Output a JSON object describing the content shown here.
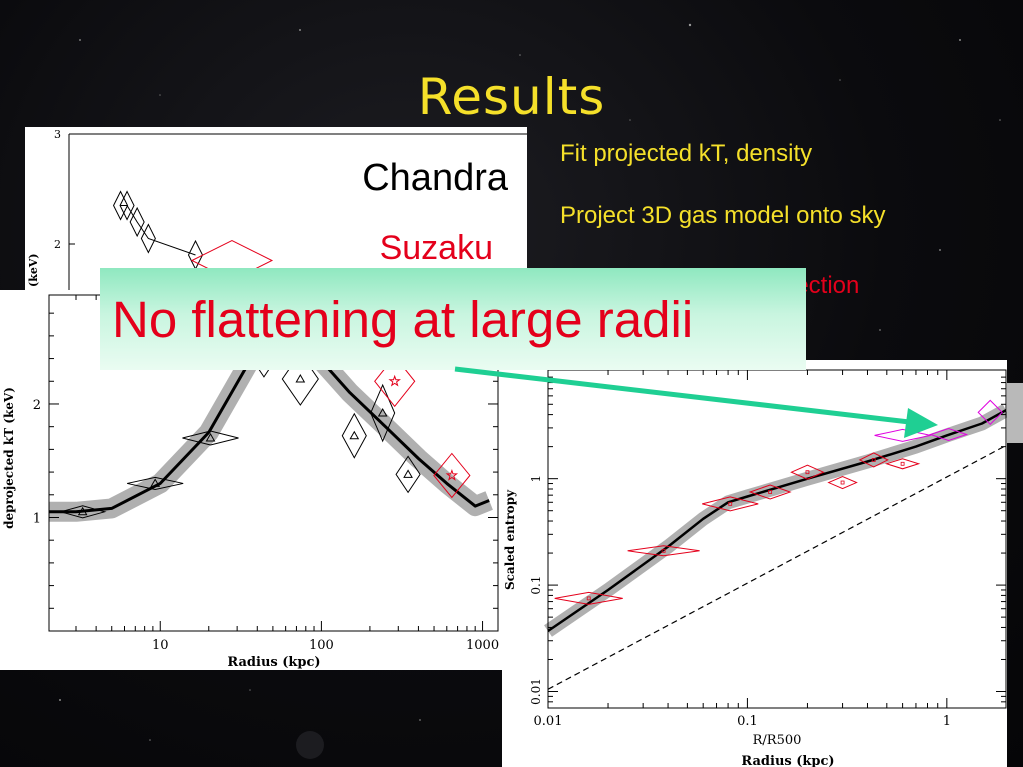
{
  "slide": {
    "title": "Results",
    "bullets": [
      {
        "text": "Fit projected kT, density",
        "color": "#f5e02a"
      },
      {
        "text": "Project 3D gas model onto sky",
        "color": "#f5e02a"
      },
      {
        "text": "jection",
        "color": "#e4001b"
      }
    ],
    "callout": "No flattening at large radii",
    "colors": {
      "yellow": "#f5e02a",
      "red": "#e4001b",
      "teal": "#1fcf93",
      "callout_bg": "#c8f5df"
    }
  },
  "chart_data": [
    {
      "type": "scatter",
      "panel": "projected-temperature",
      "xlabel": "",
      "ylabel": "T (keV)",
      "yticks": [
        "2",
        "3"
      ],
      "legend": [
        {
          "label": "Chandra",
          "color": "#000000"
        },
        {
          "label": "Suzaku",
          "color": "#e4001b"
        }
      ],
      "series": [
        {
          "name": "Chandra",
          "x": [
            4.2,
            4.6,
            5.3,
            6.2,
            12
          ],
          "y": [
            2.35,
            2.35,
            2.2,
            2.05,
            1.9
          ]
        },
        {
          "name": "Suzaku",
          "x": [
            20
          ],
          "y": [
            1.85
          ]
        }
      ]
    },
    {
      "type": "line",
      "panel": "deprojected-temperature",
      "xlabel": "Radius (kpc)",
      "ylabel": "deprojected kT (keV)",
      "xscale": "log",
      "xlim": [
        2.04,
        1247
      ],
      "ylim": [
        0,
        2.96
      ],
      "xticks": [
        10,
        100,
        1000
      ],
      "xtick_labels": [
        "10",
        "100",
        "1000"
      ],
      "yticks": [
        1,
        2
      ],
      "ytick_labels": [
        "1",
        "2"
      ],
      "model_curve": {
        "x": [
          2.04,
          3,
          5,
          10,
          20,
          35,
          50,
          70,
          100,
          150,
          250,
          400,
          600,
          900,
          1100
        ],
        "y": [
          1.05,
          1.05,
          1.08,
          1.3,
          1.75,
          2.35,
          2.75,
          2.76,
          2.38,
          2.1,
          1.8,
          1.52,
          1.3,
          1.1,
          1.15
        ]
      },
      "series": [
        {
          "name": "Chandra",
          "marker": "triangle",
          "x": [
            3.3,
            9.3,
            20.5,
            44,
            74,
            160,
            240,
            345
          ],
          "y": [
            1.05,
            1.3,
            1.7,
            2.45,
            2.22,
            1.72,
            1.92,
            1.38
          ]
        },
        {
          "name": "Suzaku",
          "marker": "star",
          "x": [
            285,
            645
          ],
          "y": [
            2.2,
            1.37
          ]
        }
      ]
    },
    {
      "type": "scatter",
      "panel": "scaled-entropy",
      "xlabel": "R/R500",
      "ylabel": "Scaled entropy",
      "xlabel2": "Radius (kpc)",
      "xscale": "log",
      "yscale": "log",
      "xlim": [
        0.01,
        1.98
      ],
      "ylim": [
        0.007,
        10.5
      ],
      "xticks": [
        0.01,
        0.1,
        1
      ],
      "xtick_labels": [
        "0.01",
        "0.1",
        "1"
      ],
      "yticks": [
        0.01,
        0.1,
        1
      ],
      "ytick_labels": [
        "0.01",
        "0.1",
        "1"
      ],
      "model_curve": {
        "x": [
          0.01,
          0.02,
          0.04,
          0.06,
          0.08,
          0.1,
          0.2,
          0.4,
          0.7,
          1.0,
          1.5,
          1.98
        ],
        "y": [
          0.037,
          0.09,
          0.23,
          0.42,
          0.6,
          0.68,
          1.0,
          1.45,
          2.0,
          2.55,
          3.3,
          4.4
        ]
      },
      "reference_line": {
        "x": [
          0.01,
          1.98
        ],
        "y": [
          0.0105,
          2.05
        ],
        "style": "dashed"
      },
      "series": [
        {
          "name": "red",
          "color": "#e4001b",
          "x": [
            0.016,
            0.038,
            0.082,
            0.13,
            0.2,
            0.3,
            0.43,
            0.6
          ],
          "y": [
            0.075,
            0.21,
            0.58,
            0.75,
            1.15,
            0.92,
            1.5,
            1.38
          ]
        },
        {
          "name": "magenta",
          "color": "#e000e0",
          "x": [
            0.6,
            1.02,
            1.65
          ],
          "y": [
            2.55,
            2.6,
            4.2
          ]
        }
      ]
    }
  ]
}
